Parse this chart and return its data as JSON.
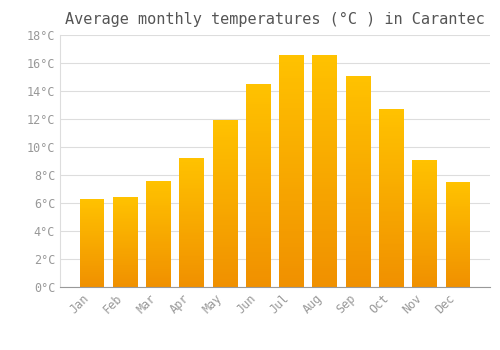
{
  "title": "Average monthly temperatures (°C ) in Carantec",
  "months": [
    "Jan",
    "Feb",
    "Mar",
    "Apr",
    "May",
    "Jun",
    "Jul",
    "Aug",
    "Sep",
    "Oct",
    "Nov",
    "Dec"
  ],
  "values": [
    6.3,
    6.4,
    7.6,
    9.2,
    11.9,
    14.5,
    16.6,
    16.6,
    15.1,
    12.7,
    9.1,
    7.5
  ],
  "bar_color_top": "#FFC200",
  "bar_color_bottom": "#F09000",
  "background_color": "#FFFFFF",
  "grid_color": "#DDDDDD",
  "text_color": "#999999",
  "title_color": "#555555",
  "ylim": [
    0,
    18
  ],
  "yticks": [
    0,
    2,
    4,
    6,
    8,
    10,
    12,
    14,
    16,
    18
  ],
  "title_fontsize": 11,
  "tick_fontsize": 8.5,
  "bar_width": 0.75
}
